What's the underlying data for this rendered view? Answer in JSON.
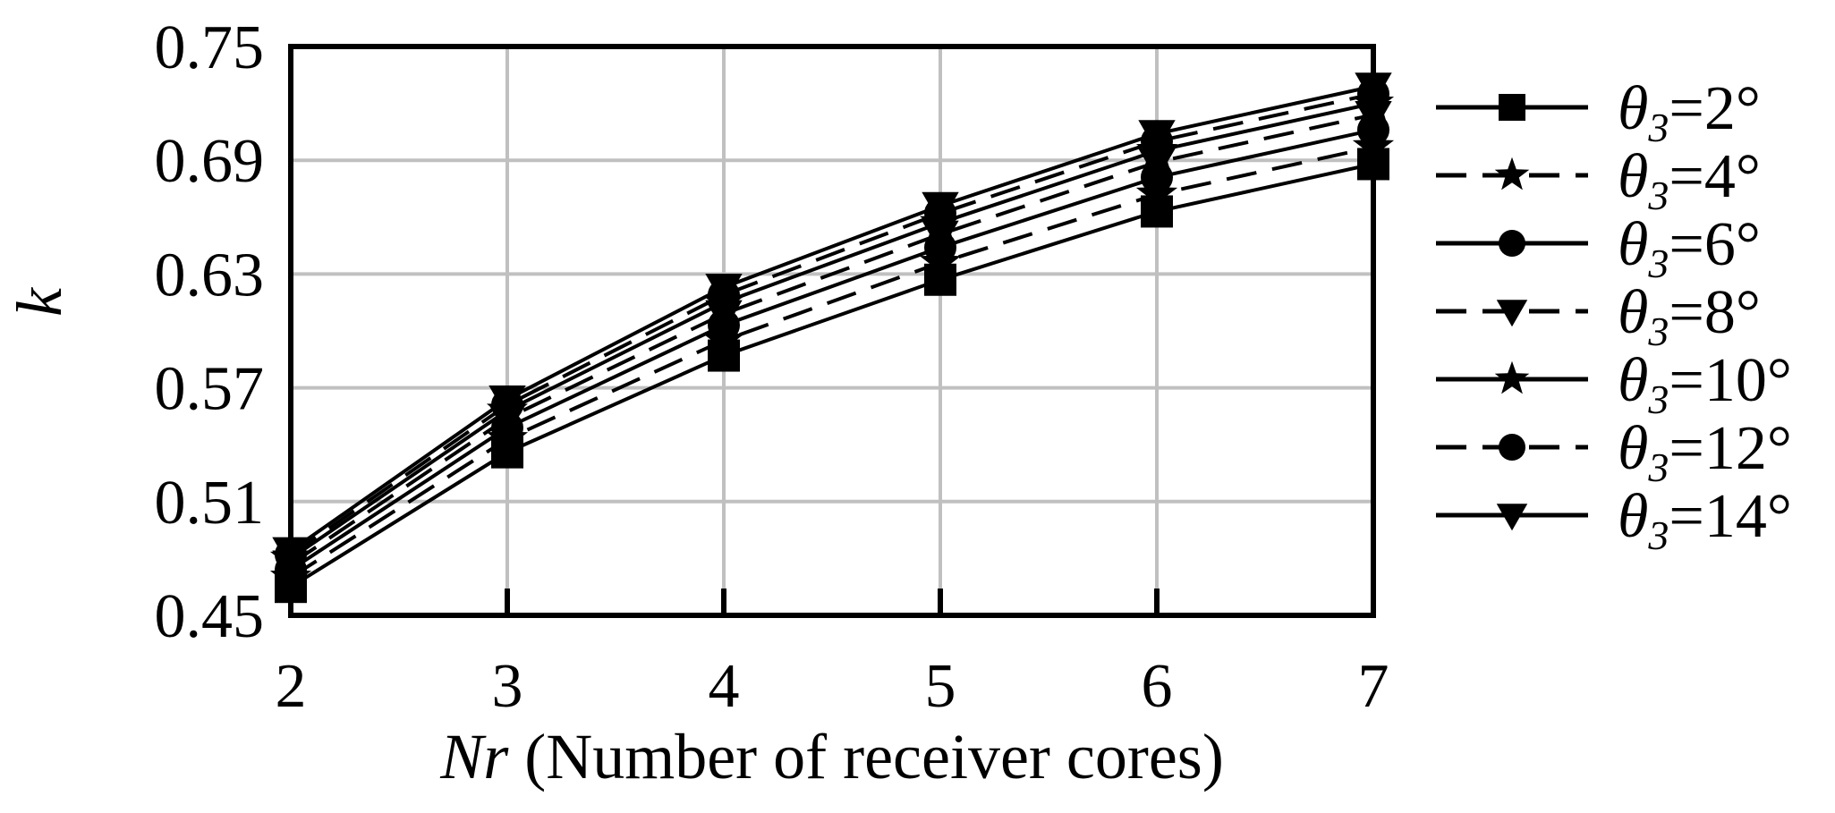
{
  "chart_data": {
    "type": "line",
    "title": "",
    "ylabel": "k",
    "xlabel": {
      "var": "Nr",
      "text": " (Number of receiver cores)"
    },
    "x": [
      2,
      3,
      4,
      5,
      6,
      7
    ],
    "xlim": [
      2,
      7
    ],
    "ylim": [
      0.45,
      0.75
    ],
    "x_ticks": [
      "2",
      "3",
      "4",
      "5",
      "6",
      "7"
    ],
    "y_ticks": [
      "0.45",
      "0.51",
      "0.57",
      "0.63",
      "0.69",
      "0.75"
    ],
    "y_tick_values": [
      0.45,
      0.51,
      0.57,
      0.63,
      0.69,
      0.75
    ],
    "grid": true,
    "legend_position": "right",
    "series": [
      {
        "name": "θ3=2°",
        "angle": "2°",
        "marker": "square",
        "dash": false,
        "values": [
          0.465,
          0.536,
          0.587,
          0.627,
          0.663,
          0.688
        ]
      },
      {
        "name": "θ3=4°",
        "angle": "4°",
        "marker": "star",
        "dash": true,
        "values": [
          0.47,
          0.543,
          0.595,
          0.636,
          0.672,
          0.697
        ]
      },
      {
        "name": "θ3=6°",
        "angle": "6°",
        "marker": "circle",
        "dash": false,
        "values": [
          0.474,
          0.549,
          0.603,
          0.644,
          0.681,
          0.706
        ]
      },
      {
        "name": "θ3=8°",
        "angle": "8°",
        "marker": "triangle-down",
        "dash": true,
        "values": [
          0.477,
          0.554,
          0.609,
          0.651,
          0.689,
          0.714
        ]
      },
      {
        "name": "θ3=10°",
        "angle": "10°",
        "marker": "star",
        "dash": false,
        "values": [
          0.48,
          0.558,
          0.615,
          0.657,
          0.695,
          0.72
        ]
      },
      {
        "name": "θ3=12°",
        "angle": "12°",
        "marker": "circle",
        "dash": true,
        "values": [
          0.482,
          0.561,
          0.619,
          0.662,
          0.7,
          0.725
        ]
      },
      {
        "name": "θ3=14°",
        "angle": "14°",
        "marker": "triangle-down",
        "dash": false,
        "values": [
          0.484,
          0.564,
          0.623,
          0.666,
          0.704,
          0.729
        ]
      }
    ],
    "legend_prefix": "θ",
    "legend_sub": "3",
    "legend_eq": "="
  }
}
